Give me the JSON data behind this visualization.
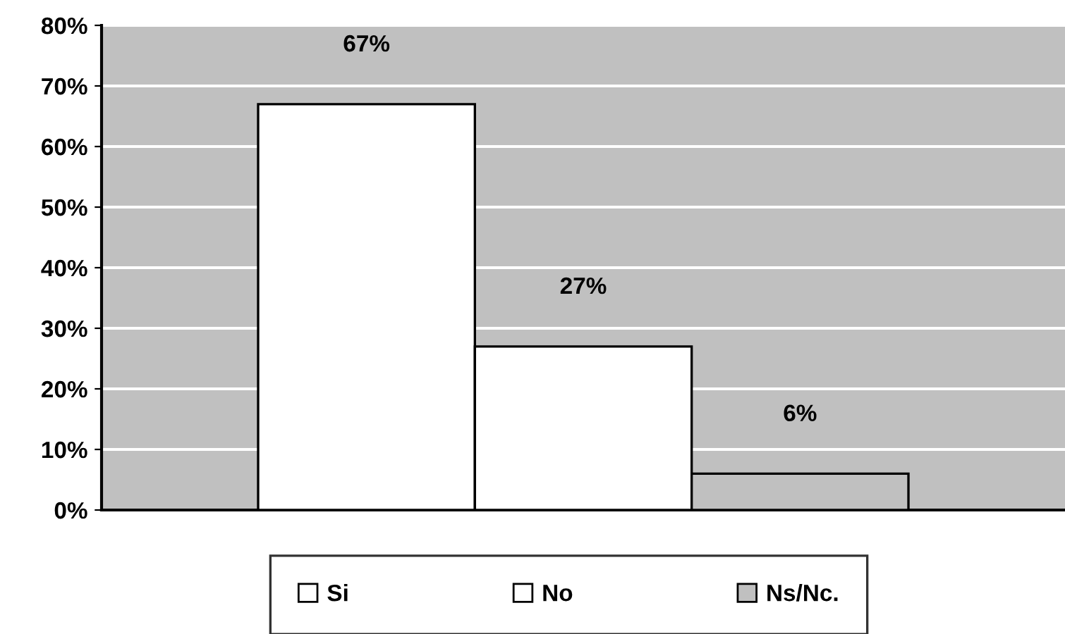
{
  "chart_data": {
    "type": "bar",
    "categories": [
      null
    ],
    "series": [
      {
        "name": "Si",
        "color": "#ffffff",
        "values": [
          67
        ],
        "value_labels": [
          "67%"
        ]
      },
      {
        "name": "No",
        "color": "#ffffff",
        "values": [
          27
        ],
        "value_labels": [
          "27%"
        ]
      },
      {
        "name": "Ns/Nc.",
        "color": "#c0c0c0",
        "values": [
          6
        ],
        "value_labels": [
          "6%"
        ]
      }
    ],
    "ylim": [
      0,
      80
    ],
    "yticks": [
      {
        "value": 0,
        "label": "0%"
      },
      {
        "value": 10,
        "label": "10%"
      },
      {
        "value": 20,
        "label": "20%"
      },
      {
        "value": 30,
        "label": "30%"
      },
      {
        "value": 40,
        "label": "40%"
      },
      {
        "value": 50,
        "label": "50%"
      },
      {
        "value": 60,
        "label": "60%"
      },
      {
        "value": 70,
        "label": "70%"
      },
      {
        "value": 80,
        "label": "80%"
      }
    ],
    "grid": "y",
    "legend": "bottom"
  }
}
